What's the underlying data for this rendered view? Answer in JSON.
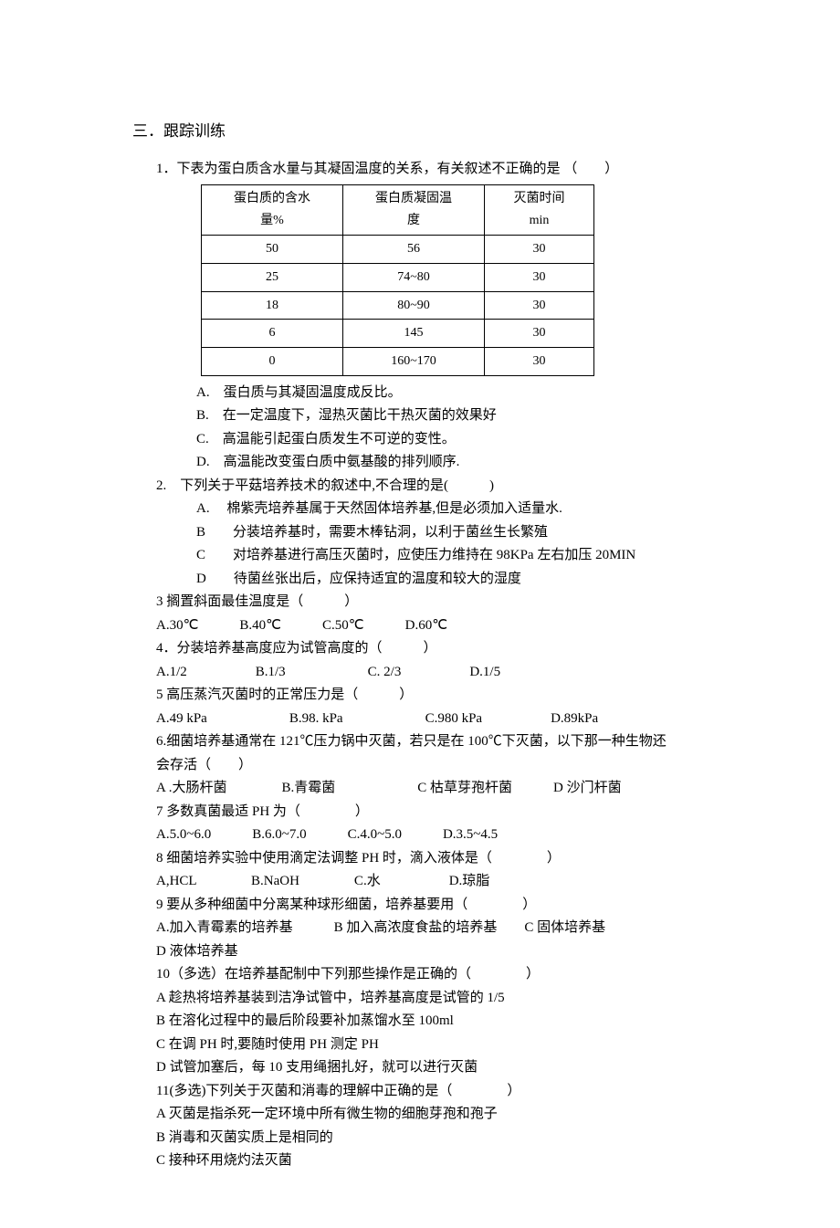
{
  "section_title": "三．跟踪训练",
  "q1": {
    "intro": "1．下表为蛋白质含水量与其凝固温度的关系，有关叙述不正确的是 （　　）",
    "table": {
      "headers": [
        "蛋白质的含水量%",
        "蛋白质凝固温度",
        "灭菌时间 min"
      ],
      "rows": [
        [
          "50",
          "56",
          "30"
        ],
        [
          "25",
          "74~80",
          "30"
        ],
        [
          "18",
          "80~90",
          "30"
        ],
        [
          "6",
          "145",
          "30"
        ],
        [
          "0",
          "160~170",
          "30"
        ]
      ]
    },
    "opts": [
      "A.　蛋白质与其凝固温度成反比。",
      "B.　在一定温度下，湿热灭菌比干热灭菌的效果好",
      "C.　高温能引起蛋白质发生不可逆的变性。",
      "D.　高温能改变蛋白质中氨基酸的排列顺序."
    ]
  },
  "q2": {
    "stem": "2.　下列关于平菇培养技术的叙述中,不合理的是(　　　)",
    "opts": [
      "A.　 棉紫壳培养基属于天然固体培养基,但是必须加入适量水.",
      "B　　分装培养基时，需要木棒钻洞，以利于菌丝生长繁殖",
      "C　　对培养基进行高压灭菌时，应使压力维持在 98KPa 左右加压 20MIN",
      "D　　待菌丝张出后，应保持适宜的温度和较大的湿度"
    ]
  },
  "q3": {
    "stem": "3 搁置斜面最佳温度是（　　　）",
    "choices": "A.30℃　　　B.40℃　　　C.50℃　　　D.60℃"
  },
  "q4": {
    "stem": "4．分装培养基高度应为试管高度的（　　　）",
    "choices": "A.1/2　　　　　B.1/3　　　　　　C. 2/3　　　　　D.1/5"
  },
  "q5": {
    "stem": "5 高压蒸汽灭菌时的正常压力是（　　　）",
    "choices": "A.49 kPa　　　　　　B.98. kPa　　　　　　C.980 kPa　　　　　D.89kPa"
  },
  "q6": {
    "stem1": "6.细菌培养基通常在 121℃压力锅中灭菌，若只是在 100℃下灭菌，以下那一种生物还",
    "stem2": "会存活（　　）",
    "choices": "A .大肠杆菌　　　　B.青霉菌　　　　　　C 枯草芽孢杆菌　　　D 沙门杆菌"
  },
  "q7": {
    "stem": "7 多数真菌最适 PH 为（　　　　）",
    "choices": "A.5.0~6.0　　　B.6.0~7.0　　　C.4.0~5.0　　　D.3.5~4.5"
  },
  "q8": {
    "stem": "8 细菌培养实验中使用滴定法调整 PH 时，滴入液体是（　　　　）",
    "choices": "A,HCL　　　　B.NaOH　　　　C.水　　　　　D.琼脂"
  },
  "q9": {
    "stem": "9 要从多种细菌中分离某种球形细菌，培养基要用（　　　　）",
    "choices1": "A.加入青霉素的培养基　　　B 加入高浓度食盐的培养基　　C 固体培养基",
    "choices2": "D 液体培养基"
  },
  "q10": {
    "stem": "10（多选）在培养基配制中下列那些操作是正确的（　　　　）",
    "opts": [
      "A 趁热将培养基装到洁净试管中，培养基高度是试管的 1/5",
      "B 在溶化过程中的最后阶段要补加蒸馏水至 100ml",
      "C 在调 PH 时,要随时使用 PH 测定 PH",
      "D 试管加塞后，每 10 支用绳捆扎好，就可以进行灭菌"
    ]
  },
  "q11": {
    "stem": "11(多选)下列关于灭菌和消毒的理解中正确的是（　　　　）",
    "opts": [
      "A 灭菌是指杀死一定环境中所有微生物的细胞芽孢和孢子",
      "B 消毒和灭菌实质上是相同的",
      "C 接种环用烧灼法灭菌"
    ]
  }
}
